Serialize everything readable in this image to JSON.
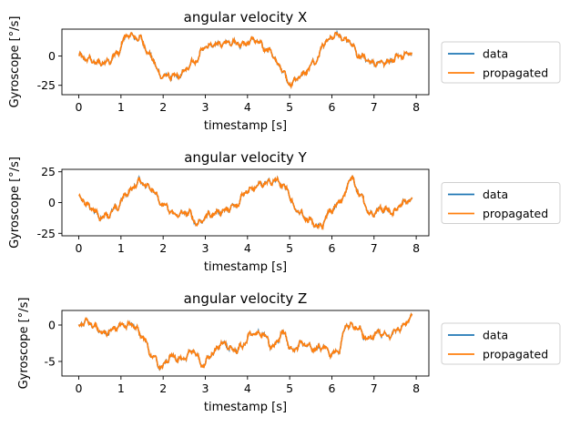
{
  "chart_data": [
    {
      "type": "line",
      "title": "angular velocity X",
      "xlabel": "timestamp [s]",
      "ylabel": "Gyroscope [°/s]",
      "xlim": [
        -0.4,
        8.3
      ],
      "ylim": [
        -33,
        23
      ],
      "xticks": [
        0,
        1,
        2,
        3,
        4,
        5,
        6,
        7,
        8
      ],
      "yticks": [
        0,
        -25
      ],
      "legend_placement": "outside-right",
      "keypoints": [
        [
          0,
          0
        ],
        [
          0.25,
          -3
        ],
        [
          0.45,
          -6
        ],
        [
          0.7,
          -5
        ],
        [
          0.9,
          2
        ],
        [
          1.15,
          18
        ],
        [
          1.45,
          15
        ],
        [
          1.7,
          0
        ],
        [
          1.95,
          -17
        ],
        [
          2.35,
          -17
        ],
        [
          2.75,
          -5
        ],
        [
          3.0,
          8
        ],
        [
          3.3,
          10
        ],
        [
          3.6,
          12
        ],
        [
          3.9,
          10
        ],
        [
          4.15,
          14
        ],
        [
          4.5,
          5
        ],
        [
          4.8,
          -10
        ],
        [
          5.0,
          -24
        ],
        [
          5.3,
          -16
        ],
        [
          5.6,
          -5
        ],
        [
          5.85,
          12
        ],
        [
          6.1,
          18
        ],
        [
          6.4,
          13
        ],
        [
          6.65,
          0
        ],
        [
          7.0,
          -6
        ],
        [
          7.3,
          -5
        ],
        [
          7.6,
          0
        ],
        [
          7.9,
          3
        ]
      ],
      "series": [
        {
          "name": "data",
          "color": "#1f77b4"
        },
        {
          "name": "propagated",
          "color": "#ff7f0e"
        }
      ]
    },
    {
      "type": "line",
      "title": "angular velocity Y",
      "xlabel": "timestamp [s]",
      "ylabel": "Gyroscope [°/s]",
      "xlim": [
        -0.4,
        8.3
      ],
      "ylim": [
        -27,
        27
      ],
      "xticks": [
        0,
        1,
        2,
        3,
        4,
        5,
        6,
        7,
        8
      ],
      "yticks": [
        25,
        0,
        -25
      ],
      "legend_placement": "outside-right",
      "keypoints": [
        [
          0,
          4
        ],
        [
          0.3,
          -4
        ],
        [
          0.5,
          -12
        ],
        [
          0.7,
          -10
        ],
        [
          0.9,
          -4
        ],
        [
          1.15,
          8
        ],
        [
          1.45,
          17
        ],
        [
          1.7,
          12
        ],
        [
          2.0,
          -2
        ],
        [
          2.3,
          -10
        ],
        [
          2.6,
          -8
        ],
        [
          2.8,
          -17
        ],
        [
          3.1,
          -10
        ],
        [
          3.4,
          -7
        ],
        [
          3.7,
          -3
        ],
        [
          4.0,
          10
        ],
        [
          4.35,
          15
        ],
        [
          4.7,
          18
        ],
        [
          4.9,
          12
        ],
        [
          5.15,
          -6
        ],
        [
          5.45,
          -14
        ],
        [
          5.7,
          -20
        ],
        [
          6.0,
          -6
        ],
        [
          6.25,
          3
        ],
        [
          6.45,
          20
        ],
        [
          6.7,
          5
        ],
        [
          6.9,
          -10
        ],
        [
          7.2,
          -5
        ],
        [
          7.45,
          -8
        ],
        [
          7.7,
          0
        ],
        [
          7.9,
          3
        ]
      ],
      "series": [
        {
          "name": "data",
          "color": "#1f77b4"
        },
        {
          "name": "propagated",
          "color": "#ff7f0e"
        }
      ]
    },
    {
      "type": "line",
      "title": "angular velocity Z",
      "xlabel": "timestamp [s]",
      "ylabel": "Gyroscope [°/s]",
      "xlim": [
        -0.4,
        8.3
      ],
      "ylim": [
        -7,
        2
      ],
      "xticks": [
        0,
        1,
        2,
        3,
        4,
        5,
        6,
        7,
        8
      ],
      "yticks": [
        0,
        -5
      ],
      "legend_placement": "outside-right",
      "keypoints": [
        [
          0,
          0
        ],
        [
          0.2,
          0.5
        ],
        [
          0.4,
          -0.3
        ],
        [
          0.6,
          -1.2
        ],
        [
          0.85,
          -0.5
        ],
        [
          1.0,
          0
        ],
        [
          1.3,
          0
        ],
        [
          1.5,
          -1.5
        ],
        [
          1.75,
          -4.3
        ],
        [
          1.95,
          -5.8
        ],
        [
          2.2,
          -4.3
        ],
        [
          2.45,
          -4.8
        ],
        [
          2.7,
          -3.5
        ],
        [
          2.95,
          -5.5
        ],
        [
          3.15,
          -4
        ],
        [
          3.4,
          -2.5
        ],
        [
          3.7,
          -3.5
        ],
        [
          3.85,
          -3
        ],
        [
          4.1,
          -1.2
        ],
        [
          4.35,
          -1.2
        ],
        [
          4.6,
          -3
        ],
        [
          4.85,
          -1
        ],
        [
          5.05,
          -3.5
        ],
        [
          5.3,
          -2.5
        ],
        [
          5.6,
          -3.3
        ],
        [
          5.8,
          -3
        ],
        [
          6.0,
          -4
        ],
        [
          6.15,
          -3.5
        ],
        [
          6.35,
          0
        ],
        [
          6.6,
          -0.3
        ],
        [
          6.85,
          -2
        ],
        [
          7.1,
          -1
        ],
        [
          7.35,
          -1.5
        ],
        [
          7.6,
          -0.5
        ],
        [
          7.9,
          1
        ]
      ],
      "series": [
        {
          "name": "data",
          "color": "#1f77b4"
        },
        {
          "name": "propagated",
          "color": "#ff7f0e"
        }
      ]
    }
  ]
}
